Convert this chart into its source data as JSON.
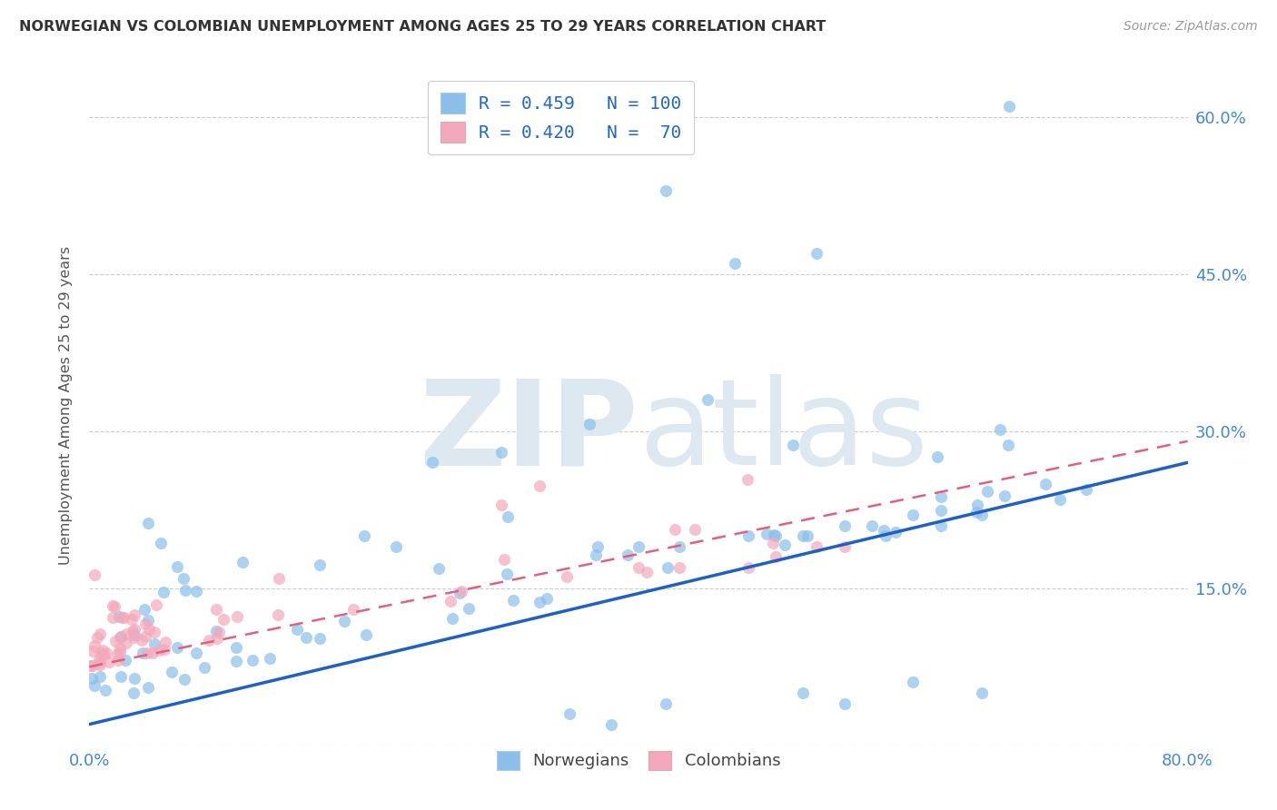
{
  "title": "NORWEGIAN VS COLOMBIAN UNEMPLOYMENT AMONG AGES 25 TO 29 YEARS CORRELATION CHART",
  "source": "Source: ZipAtlas.com",
  "ylabel": "Unemployment Among Ages 25 to 29 years",
  "xlim": [
    0.0,
    0.8
  ],
  "ylim": [
    0.0,
    0.65
  ],
  "xticks": [
    0.0,
    0.1,
    0.2,
    0.3,
    0.4,
    0.5,
    0.6,
    0.7,
    0.8
  ],
  "ytick_positions": [
    0.0,
    0.15,
    0.3,
    0.45,
    0.6
  ],
  "yticklabels": [
    "",
    "15.0%",
    "30.0%",
    "45.0%",
    "60.0%"
  ],
  "norwegian_color": "#8bbfea",
  "colombian_color": "#f4a8bb",
  "norwegian_line_color": "#2060c0",
  "colombian_line_color": "#e06080",
  "tick_label_color": "#4488cc",
  "norway_R": 0.459,
  "norway_N": 100,
  "colombia_R": 0.42,
  "colombia_N": 70,
  "background_color": "#ffffff",
  "grid_color": "#cccccc",
  "watermark_color": "#dde8f0",
  "title_color": "#333333",
  "source_color": "#999999",
  "legend_text_color": "#2266cc"
}
